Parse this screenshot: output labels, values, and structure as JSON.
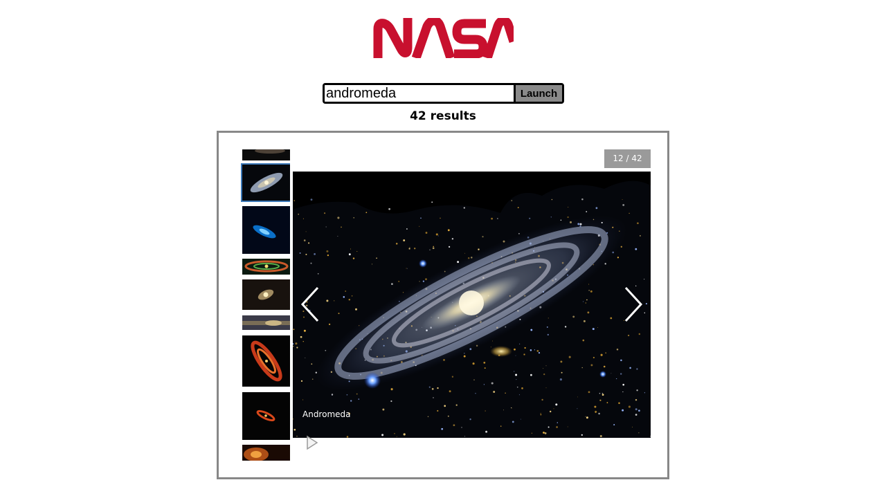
{
  "logo": {
    "text": "NASA",
    "color": "#c8102e"
  },
  "search": {
    "value": "andromeda",
    "button_label": "Launch"
  },
  "results": {
    "label": "42 results"
  },
  "gallery": {
    "counter": "12 / 42",
    "caption": "Andromeda",
    "thumbnails": [
      {
        "icon": "galaxy-thumbnail-partial",
        "active": false
      },
      {
        "icon": "galaxy-thumbnail-grey-spiral",
        "active": true
      },
      {
        "icon": "galaxy-thumbnail-blue",
        "active": false
      },
      {
        "icon": "galaxy-thumbnail-ring",
        "active": false
      },
      {
        "icon": "galaxy-thumbnail-yellow-core",
        "active": false
      },
      {
        "icon": "galaxy-thumbnail-dust-band",
        "active": false
      },
      {
        "icon": "galaxy-thumbnail-red-spiral",
        "active": false
      },
      {
        "icon": "galaxy-thumbnail-red-small",
        "active": false
      },
      {
        "icon": "galaxy-thumbnail-orange-partial",
        "active": false
      }
    ],
    "icons": {
      "prev": "chevron-left-icon",
      "next": "chevron-right-icon",
      "play": "play-icon"
    }
  }
}
